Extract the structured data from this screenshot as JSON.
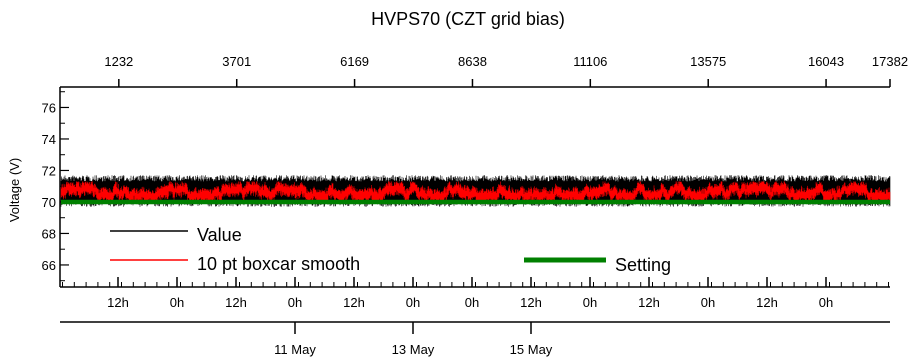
{
  "chart_data": {
    "type": "line",
    "title": "HVPS70 (CZT grid bias)",
    "ylabel": "Voltage (V)",
    "ylim": [
      64.6,
      77.3
    ],
    "yticks_major": [
      66,
      68,
      70,
      72,
      74,
      76
    ],
    "top_axis": {
      "range": [
        0,
        17382
      ],
      "tick_values": [
        1232,
        3701,
        6169,
        8638,
        11106,
        13575,
        16043,
        17382
      ],
      "tick_labels": [
        "1232",
        "3701",
        "6169",
        "8638",
        "11106",
        "13575",
        "16043",
        "17382"
      ]
    },
    "bottom_axis": {
      "hour_labels": [
        "12h",
        "0h",
        "12h",
        "0h",
        "12h",
        "0h",
        "0h",
        "12h",
        "0h",
        "12h",
        "0h",
        "12h",
        "0h"
      ],
      "date_labels": [
        "11 May",
        "13 May",
        "15 May"
      ]
    },
    "series": [
      {
        "name": "Value",
        "color": "#000000",
        "typical_range": [
          69.7,
          71.7
        ]
      },
      {
        "name": "10 pt boxcar smooth",
        "color": "#ff0000",
        "typical_range": [
          70.1,
          71.3
        ]
      },
      {
        "name": "Setting",
        "color": "#008000",
        "value": 70
      }
    ],
    "legend": {
      "placement": "bottom-left"
    }
  }
}
